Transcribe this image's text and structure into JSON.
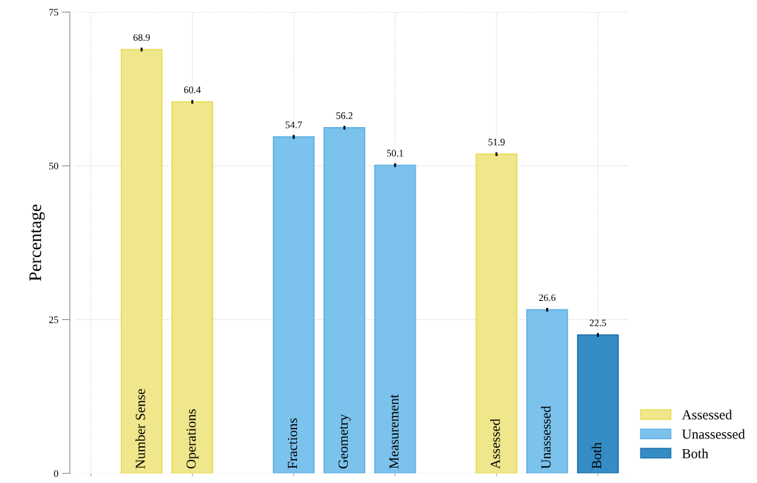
{
  "chart_data": {
    "type": "bar",
    "ylabel": "Percentage",
    "categories": [
      "Number Sense",
      "Operations",
      null,
      "Fractions",
      "Geometry",
      "Measurement",
      null,
      "Assessed",
      "Unassessed",
      "Both"
    ],
    "series": [
      {
        "name": "Assessed",
        "color": "#f0e68c",
        "values": [
          68.9,
          60.4,
          null,
          null,
          null,
          null,
          null,
          51.9,
          null,
          null
        ],
        "errors": [
          0.3,
          0.3,
          null,
          null,
          null,
          null,
          null,
          0.3,
          null,
          null
        ]
      },
      {
        "name": "Unassessed",
        "color": "#7bc2ec",
        "values": [
          null,
          null,
          null,
          54.7,
          56.2,
          50.1,
          null,
          null,
          26.6,
          null
        ],
        "errors": [
          null,
          null,
          null,
          0.3,
          0.3,
          0.3,
          null,
          null,
          0.3,
          null
        ]
      },
      {
        "name": "Both",
        "color": "#348dc4",
        "values": [
          null,
          null,
          null,
          null,
          null,
          null,
          null,
          null,
          null,
          22.5
        ],
        "errors": [
          null,
          null,
          null,
          null,
          null,
          null,
          null,
          null,
          null,
          0.3
        ]
      }
    ],
    "ylim": [
      0,
      75
    ],
    "yticks": [
      0,
      25,
      50,
      75
    ],
    "grid": true,
    "data_labels": true,
    "legend": "bottom right"
  }
}
